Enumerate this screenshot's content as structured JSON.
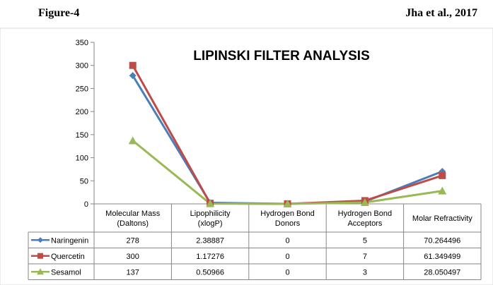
{
  "header": {
    "figure_label": "Figure-4",
    "citation": "Jha et al., 2017"
  },
  "chart_data": {
    "type": "line",
    "title": "LIPINSKI FILTER ANALYSIS",
    "categories": [
      [
        "Molecular Mass",
        "(Daltons)"
      ],
      [
        "Lipophilicity",
        "(xlogP)"
      ],
      [
        "Hydrogen Bond",
        "Donors"
      ],
      [
        "Hydrogen Bond",
        "Acceptors"
      ],
      [
        "Molar Refractivity"
      ]
    ],
    "ylim": [
      0,
      350
    ],
    "yticks": [
      0,
      50,
      100,
      150,
      200,
      250,
      300,
      350
    ],
    "grid": false,
    "legend": "data-table",
    "series": [
      {
        "name": "Naringenin",
        "color": "#4a7ebb",
        "marker": "diamond",
        "values": [
          278,
          2.38887,
          0,
          5,
          70.264496
        ],
        "labels": [
          "278",
          "2.38887",
          "0",
          "5",
          "70.264496"
        ]
      },
      {
        "name": "Quercetin",
        "color": "#be4b48",
        "marker": "square",
        "values": [
          300,
          1.17276,
          0,
          7,
          61.349499
        ],
        "labels": [
          "300",
          "1.17276",
          "0",
          "7",
          "61.349499"
        ]
      },
      {
        "name": "Sesamol",
        "color": "#98b954",
        "marker": "triangle",
        "values": [
          137,
          0.50966,
          0,
          3,
          28.050497
        ],
        "labels": [
          "137",
          "0.50966",
          "0",
          "3",
          "28.050497"
        ]
      }
    ]
  }
}
